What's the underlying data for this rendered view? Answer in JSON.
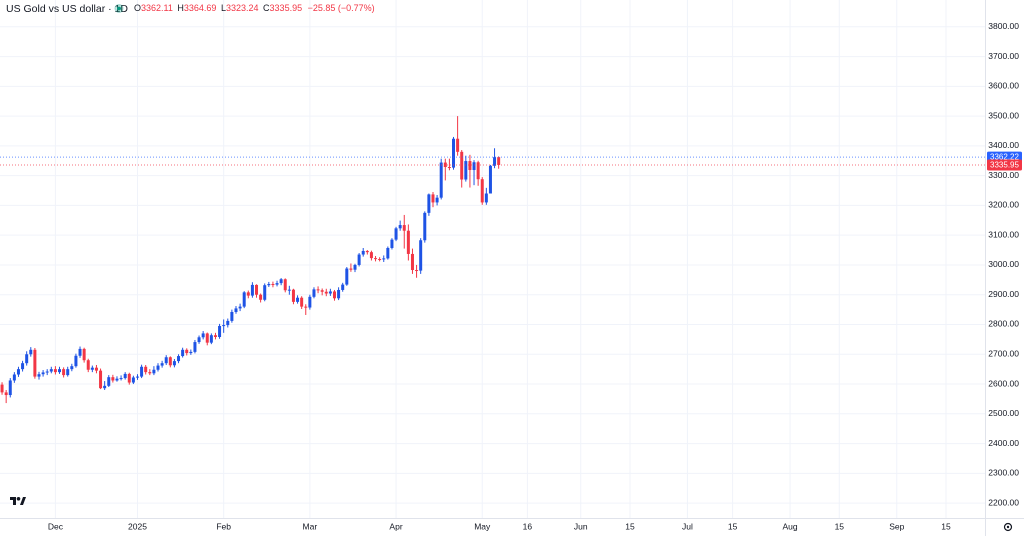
{
  "chart_data": {
    "type": "candlestick",
    "title": "US Gold vs US dollar · 1D",
    "ohlc_labels": [
      "O",
      "H",
      "L",
      "C"
    ],
    "change": "−25.85 (−0.77%)",
    "up_color": "#1e53e5",
    "down_color": "#f23645",
    "grid": true,
    "ylim": [
      2150,
      3890
    ],
    "yticks": [
      {
        "value": 2200,
        "label": "2200.00"
      },
      {
        "value": 2300,
        "label": "2300.00"
      },
      {
        "value": 2400,
        "label": "2400.00"
      },
      {
        "value": 2500,
        "label": "2500.00"
      },
      {
        "value": 2600,
        "label": "2600.00"
      },
      {
        "value": 2700,
        "label": "2700.00"
      },
      {
        "value": 2800,
        "label": "2800.00"
      },
      {
        "value": 2900,
        "label": "2900.00"
      },
      {
        "value": 3000,
        "label": "3000.00"
      },
      {
        "value": 3100,
        "label": "3100.00"
      },
      {
        "value": 3200,
        "label": "3200.00"
      },
      {
        "value": 3300,
        "label": "3300.00"
      },
      {
        "value": 3400,
        "label": "3400.00"
      },
      {
        "value": 3500,
        "label": "3500.00"
      },
      {
        "value": 3600,
        "label": "3600.00"
      },
      {
        "value": 3700,
        "label": "3700.00"
      },
      {
        "value": 3800,
        "label": "3800.00"
      }
    ],
    "price_labels": [
      {
        "value": 3362.22,
        "color": "#2962ff"
      },
      {
        "value": 3335.95,
        "color": "#f23645"
      }
    ],
    "categories": [
      null,
      null,
      null,
      null,
      null,
      null,
      null,
      null,
      null,
      null,
      null,
      null,
      null,
      "Dec",
      null,
      null,
      null,
      null,
      null,
      null,
      null,
      null,
      null,
      null,
      null,
      null,
      null,
      null,
      null,
      null,
      null,
      null,
      null,
      "2025",
      null,
      null,
      null,
      null,
      null,
      null,
      null,
      null,
      null,
      null,
      null,
      null,
      null,
      null,
      null,
      null,
      null,
      null,
      null,
      null,
      "Feb",
      null,
      null,
      null,
      null,
      null,
      null,
      null,
      null,
      null,
      null,
      null,
      null,
      null,
      null,
      null,
      null,
      null,
      null,
      null,
      null,
      "Mar",
      null,
      null,
      null,
      null,
      null,
      null,
      null,
      null,
      null,
      null,
      null,
      null,
      null,
      null,
      null,
      null,
      null,
      null,
      null,
      null,
      "Apr",
      null,
      null,
      null,
      null,
      null,
      null,
      null,
      null,
      null,
      null,
      null,
      null,
      null,
      null,
      null,
      null,
      null,
      null,
      null,
      null,
      "May",
      null,
      null,
      null,
      null,
      null,
      null,
      null,
      null,
      null,
      null,
      "16",
      null,
      null,
      null,
      null,
      null,
      null,
      null,
      null,
      null,
      null,
      null,
      null,
      "Jun",
      null,
      null,
      null,
      null,
      null,
      null,
      null,
      null,
      null,
      null,
      null,
      "15",
      null,
      null,
      null,
      null,
      null,
      null,
      null,
      null,
      null,
      null,
      null,
      null,
      null,
      "Jul",
      null,
      null,
      null,
      null,
      null,
      null,
      null,
      null,
      null,
      null,
      "15",
      null,
      null,
      null,
      null,
      null,
      null,
      null,
      null,
      null,
      null,
      null,
      null,
      null,
      "Aug",
      null,
      null,
      null,
      null,
      null,
      null,
      null,
      null,
      null,
      null,
      null,
      "15",
      null,
      null,
      null,
      null,
      null,
      null,
      null,
      null,
      null,
      null,
      null,
      null,
      null,
      "Sep",
      null,
      null,
      null,
      null,
      null,
      null,
      null,
      null,
      null,
      null,
      null,
      "15",
      null,
      null,
      null,
      null,
      null,
      null,
      null,
      null,
      null
    ],
    "open": [
      2598,
      2572,
      2563,
      2612,
      2632,
      2650,
      2670,
      2700,
      2715,
      2625,
      2633,
      2639,
      2642,
      2650,
      2640,
      2650,
      2630,
      2650,
      2660,
      2695,
      2718,
      2680,
      2648,
      2655,
      2645,
      2586,
      2594,
      2623,
      2612,
      2618,
      2620,
      2634,
      2605,
      2622,
      2625,
      2658,
      2640,
      2636,
      2648,
      2662,
      2670,
      2690,
      2663,
      2677,
      2694,
      2715,
      2704,
      2708,
      2741,
      2757,
      2770,
      2739,
      2764,
      2758,
      2795,
      2798,
      2812,
      2842,
      2854,
      2860,
      2908,
      2897,
      2933,
      2900,
      2883,
      2932,
      2936,
      2934,
      2939,
      2952,
      2915,
      2917,
      2876,
      2890,
      2860,
      2857,
      2893,
      2918,
      2915,
      2910,
      2904,
      2911,
      2888,
      2916,
      2934,
      2988,
      2984,
      3000,
      3035,
      3047,
      3043,
      3023,
      3020,
      3019,
      3022,
      3057,
      3085,
      3123,
      3134,
      3115,
      3037,
      2983,
      2981,
      3083,
      3175,
      3237,
      3210,
      3226,
      3344,
      3329,
      3327,
      3424,
      3380,
      3287,
      3349,
      3319,
      3345,
      3288,
      3210,
      3240,
      3333,
      3362.11,
      null,
      null,
      null,
      null,
      null,
      null,
      null,
      null,
      null,
      null,
      null,
      null,
      null,
      null,
      null,
      null,
      null,
      null,
      null,
      null,
      null,
      null,
      null,
      null,
      null,
      null,
      null,
      null,
      null,
      null,
      null,
      null,
      null,
      null,
      null,
      null,
      null,
      null,
      null,
      null,
      null,
      null,
      null,
      null,
      null,
      null,
      null,
      null,
      null,
      null,
      null,
      null,
      null,
      null,
      null,
      null,
      null,
      null,
      null,
      null,
      null,
      null,
      null,
      null,
      null,
      null,
      null,
      null,
      null,
      null,
      null,
      null,
      null,
      null,
      null,
      null,
      null,
      null,
      null,
      null,
      null,
      null,
      null,
      null,
      null,
      null,
      null,
      null,
      null,
      null,
      null,
      null,
      null,
      null,
      null,
      null,
      null,
      null,
      null,
      null,
      null,
      null,
      null,
      null,
      null,
      null,
      null,
      null,
      null,
      null,
      null,
      null,
      null,
      null,
      null,
      null,
      null,
      null
    ],
    "high": [
      2606,
      2580,
      2620,
      2640,
      2658,
      2678,
      2710,
      2724,
      2721,
      2641,
      2647,
      2650,
      2658,
      2660,
      2658,
      2656,
      2658,
      2668,
      2702,
      2726,
      2722,
      2685,
      2662,
      2664,
      2652,
      2610,
      2630,
      2631,
      2626,
      2629,
      2640,
      2638,
      2628,
      2633,
      2665,
      2664,
      2650,
      2660,
      2670,
      2678,
      2697,
      2693,
      2684,
      2700,
      2722,
      2720,
      2716,
      2748,
      2763,
      2778,
      2773,
      2770,
      2772,
      2802,
      2817,
      2820,
      2850,
      2862,
      2870,
      2912,
      2914,
      2942,
      2935,
      2904,
      2938,
      2943,
      2944,
      2947,
      2956,
      2955,
      2930,
      2920,
      2898,
      2895,
      2868,
      2900,
      2925,
      2928,
      2921,
      2920,
      2920,
      2916,
      2925,
      2940,
      2993,
      3005,
      3004,
      3040,
      3057,
      3050,
      3048,
      3030,
      3026,
      3032,
      3062,
      3090,
      3128,
      3149,
      3168,
      3136,
      3055,
      3000,
      3090,
      3180,
      3240,
      3245,
      3235,
      3357,
      3357,
      3357,
      3430,
      3500,
      3386,
      3367,
      3370,
      3352,
      3350,
      3295,
      3259,
      3336,
      3392,
      3364.69,
      null,
      null,
      null,
      null,
      null,
      null,
      null,
      null,
      null,
      null,
      null,
      null,
      null,
      null,
      null,
      null,
      null,
      null,
      null,
      null,
      null,
      null,
      null,
      null,
      null,
      null,
      null,
      null,
      null,
      null,
      null,
      null,
      null,
      null,
      null,
      null,
      null,
      null,
      null,
      null,
      null,
      null,
      null,
      null,
      null,
      null,
      null,
      null,
      null,
      null,
      null,
      null,
      null,
      null,
      null,
      null,
      null,
      null,
      null,
      null,
      null,
      null,
      null,
      null,
      null,
      null,
      null,
      null,
      null,
      null,
      null,
      null,
      null,
      null,
      null,
      null,
      null,
      null,
      null,
      null,
      null,
      null,
      null,
      null,
      null,
      null,
      null,
      null,
      null,
      null,
      null,
      null,
      null,
      null,
      null,
      null,
      null,
      null,
      null,
      null,
      null,
      null,
      null,
      null,
      null,
      null,
      null,
      null,
      null,
      null,
      null,
      null,
      null,
      null,
      null,
      null,
      null,
      null
    ],
    "low": [
      2564,
      2536,
      2555,
      2604,
      2624,
      2642,
      2662,
      2692,
      2618,
      2615,
      2625,
      2630,
      2636,
      2632,
      2634,
      2622,
      2625,
      2643,
      2655,
      2688,
      2672,
      2640,
      2640,
      2636,
      2583,
      2580,
      2590,
      2605,
      2608,
      2612,
      2615,
      2598,
      2600,
      2614,
      2620,
      2632,
      2630,
      2630,
      2642,
      2655,
      2664,
      2656,
      2656,
      2670,
      2689,
      2696,
      2698,
      2703,
      2735,
      2750,
      2730,
      2734,
      2750,
      2752,
      2772,
      2790,
      2806,
      2836,
      2845,
      2855,
      2888,
      2890,
      2890,
      2874,
      2878,
      2926,
      2925,
      2928,
      2932,
      2908,
      2900,
      2868,
      2870,
      2852,
      2832,
      2850,
      2888,
      2905,
      2898,
      2895,
      2896,
      2880,
      2882,
      2910,
      2930,
      2977,
      2976,
      2995,
      3028,
      3035,
      3015,
      3012,
      3012,
      3010,
      3018,
      3052,
      3080,
      3115,
      3055,
      3015,
      2970,
      2957,
      2970,
      3075,
      3165,
      3194,
      3200,
      3220,
      3284,
      3318,
      3320,
      3367,
      3260,
      3280,
      3260,
      3268,
      3266,
      3202,
      3202,
      3240,
      3325,
      3323.24,
      null,
      null,
      null,
      null,
      null,
      null,
      null,
      null,
      null,
      null,
      null,
      null,
      null,
      null,
      null,
      null,
      null,
      null,
      null,
      null,
      null,
      null,
      null,
      null,
      null,
      null,
      null,
      null,
      null,
      null,
      null,
      null,
      null,
      null,
      null,
      null,
      null,
      null,
      null,
      null,
      null,
      null,
      null,
      null,
      null,
      null,
      null,
      null,
      null,
      null,
      null,
      null,
      null,
      null,
      null,
      null,
      null,
      null,
      null,
      null,
      null,
      null,
      null,
      null,
      null,
      null,
      null,
      null,
      null,
      null,
      null,
      null,
      null,
      null,
      null,
      null,
      null,
      null,
      null,
      null,
      null,
      null,
      null,
      null,
      null,
      null,
      null,
      null,
      null,
      null,
      null,
      null,
      null,
      null,
      null,
      null,
      null,
      null,
      null,
      null,
      null,
      null,
      null,
      null,
      null,
      null,
      null,
      null,
      null,
      null,
      null,
      null,
      null,
      null,
      null,
      null,
      null,
      null
    ],
    "close": [
      2572,
      2563,
      2612,
      2632,
      2650,
      2670,
      2700,
      2715,
      2625,
      2633,
      2639,
      2642,
      2650,
      2640,
      2650,
      2630,
      2650,
      2660,
      2695,
      2718,
      2680,
      2648,
      2655,
      2645,
      2586,
      2594,
      2623,
      2612,
      2618,
      2620,
      2634,
      2605,
      2622,
      2625,
      2658,
      2640,
      2636,
      2648,
      2662,
      2670,
      2690,
      2663,
      2677,
      2694,
      2715,
      2704,
      2708,
      2741,
      2757,
      2770,
      2739,
      2764,
      2758,
      2795,
      2798,
      2812,
      2842,
      2854,
      2860,
      2908,
      2897,
      2933,
      2900,
      2883,
      2932,
      2936,
      2934,
      2939,
      2952,
      2915,
      2917,
      2876,
      2890,
      2860,
      2857,
      2893,
      2918,
      2915,
      2910,
      2904,
      2911,
      2888,
      2916,
      2934,
      2988,
      2984,
      3000,
      3035,
      3047,
      3043,
      3023,
      3020,
      3019,
      3022,
      3057,
      3085,
      3123,
      3134,
      3115,
      3037,
      2983,
      2981,
      3083,
      3175,
      3237,
      3210,
      3226,
      3344,
      3329,
      3327,
      3424,
      3380,
      3287,
      3349,
      3319,
      3345,
      3288,
      3210,
      3240,
      3333,
      3362,
      3335.95,
      null,
      null,
      null,
      null,
      null,
      null,
      null,
      null,
      null,
      null,
      null,
      null,
      null,
      null,
      null,
      null,
      null,
      null,
      null,
      null,
      null,
      null,
      null,
      null,
      null,
      null,
      null,
      null,
      null,
      null,
      null,
      null,
      null,
      null,
      null,
      null,
      null,
      null,
      null,
      null,
      null,
      null,
      null,
      null,
      null,
      null,
      null,
      null,
      null,
      null,
      null,
      null,
      null,
      null,
      null,
      null,
      null,
      null,
      null,
      null,
      null,
      null,
      null,
      null,
      null,
      null,
      null,
      null,
      null,
      null,
      null,
      null,
      null,
      null,
      null,
      null,
      null,
      null,
      null,
      null,
      null,
      null,
      null,
      null,
      null,
      null,
      null,
      null,
      null,
      null,
      null,
      null,
      null,
      null,
      null,
      null,
      null,
      null,
      null,
      null,
      null,
      null,
      null,
      null,
      null,
      null,
      null,
      null,
      null,
      null,
      null,
      null,
      null,
      null,
      null,
      null,
      null,
      null
    ]
  }
}
